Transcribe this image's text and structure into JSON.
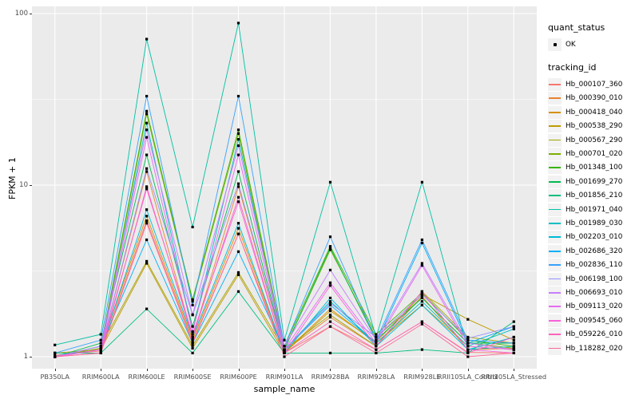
{
  "figure": {
    "panel_background": "#EBEBEB",
    "gridline_color": "#FFFFFF",
    "tick_label_color": "#4D4D4D",
    "point_color": "#000000"
  },
  "axes": {
    "x_title": "sample_name",
    "y_title": "FPKM + 1"
  },
  "legend": {
    "quant_title": "quant_status",
    "quant_item_label": "OK",
    "tracking_title": "tracking_id",
    "key_background": "#F2F2F2"
  },
  "chart_data": {
    "type": "line",
    "title": "",
    "xlabel": "sample_name",
    "ylabel": "FPKM + 1",
    "y_scale": "log10",
    "ylim": [
      1,
      100
    ],
    "y_ticks": [
      1,
      10,
      100
    ],
    "y_minor_ticks": [
      3.1623,
      31.6228
    ],
    "grid": true,
    "legend_position": "right",
    "point_shape": "small-black-square",
    "categories": [
      "PB350LA",
      "RRIM600LA",
      "RRIM600LE",
      "RRIM600SE",
      "RRIM600PE",
      "RRIM901LA",
      "RRIM928BA",
      "RRIM928LA",
      "RRIM928LE",
      "RRII105LA_Control",
      "RRII105LA_Stressed"
    ],
    "series": [
      {
        "name": "Hb_000107_360",
        "color": "#F8766D",
        "values": [
          1.02,
          1.08,
          6.2,
          1.22,
          5.2,
          1.05,
          1.5,
          1.1,
          1.6,
          1.06,
          1.05
        ]
      },
      {
        "name": "Hb_000390_010",
        "color": "#EA8331",
        "values": [
          1.0,
          1.1,
          12.0,
          1.3,
          9.8,
          1.08,
          1.7,
          1.15,
          2.25,
          1.1,
          1.12
        ]
      },
      {
        "name": "Hb_000418_040",
        "color": "#D89000",
        "values": [
          1.0,
          1.12,
          6.6,
          1.26,
          5.6,
          1.06,
          1.9,
          1.2,
          2.0,
          1.15,
          1.1
        ]
      },
      {
        "name": "Hb_000538_290",
        "color": "#C09B00",
        "values": [
          1.05,
          1.1,
          3.5,
          1.12,
          3.0,
          1.05,
          1.85,
          1.22,
          2.3,
          1.65,
          1.25
        ]
      },
      {
        "name": "Hb_000567_290",
        "color": "#A3A500",
        "values": [
          1.0,
          1.15,
          3.6,
          1.16,
          3.1,
          1.1,
          1.75,
          1.15,
          2.4,
          1.3,
          1.2
        ]
      },
      {
        "name": "Hb_000701_020",
        "color": "#7CAE00",
        "values": [
          1.0,
          1.12,
          26.0,
          2.1,
          20.0,
          1.1,
          4.2,
          1.3,
          2.2,
          1.2,
          1.12
        ]
      },
      {
        "name": "Hb_001348_100",
        "color": "#39B600",
        "values": [
          1.0,
          1.15,
          27.0,
          2.15,
          21.0,
          1.15,
          4.4,
          1.35,
          2.35,
          1.25,
          1.15
        ]
      },
      {
        "name": "Hb_001699_270",
        "color": "#00BB4E",
        "values": [
          1.0,
          1.2,
          15.0,
          1.5,
          12.0,
          1.1,
          4.3,
          1.25,
          2.2,
          1.2,
          1.2
        ]
      },
      {
        "name": "Hb_001856_210",
        "color": "#00BF7D",
        "values": [
          1.05,
          1.05,
          1.9,
          1.05,
          2.4,
          1.05,
          1.05,
          1.05,
          1.1,
          1.05,
          1.6
        ]
      },
      {
        "name": "Hb_001971_040",
        "color": "#00C1A3",
        "values": [
          1.17,
          1.35,
          71.0,
          5.7,
          88.0,
          1.25,
          10.4,
          1.3,
          10.4,
          1.1,
          1.15
        ]
      },
      {
        "name": "Hb_001989_030",
        "color": "#00BFC4",
        "values": [
          1.0,
          1.1,
          23.0,
          1.4,
          18.5,
          1.1,
          2.1,
          1.2,
          2.1,
          1.15,
          1.45
        ]
      },
      {
        "name": "Hb_002203_010",
        "color": "#00BBDA",
        "values": [
          1.0,
          1.1,
          7.2,
          1.3,
          6.0,
          1.05,
          2.2,
          1.15,
          2.0,
          1.1,
          1.3
        ]
      },
      {
        "name": "Hb_002686_320",
        "color": "#00B0F6",
        "values": [
          1.0,
          1.15,
          4.8,
          1.2,
          4.1,
          1.1,
          2.0,
          1.2,
          4.6,
          1.2,
          1.5
        ]
      },
      {
        "name": "Hb_002836_110",
        "color": "#35A2FF",
        "values": [
          1.05,
          1.25,
          33.0,
          2.0,
          33.0,
          1.15,
          5.0,
          1.25,
          4.8,
          1.25,
          1.2
        ]
      },
      {
        "name": "Hb_006198_100",
        "color": "#9590FF",
        "values": [
          1.0,
          1.1,
          12.5,
          1.75,
          10.2,
          1.1,
          2.05,
          1.3,
          2.3,
          1.28,
          1.5
        ]
      },
      {
        "name": "Hb_006693_010",
        "color": "#C77CFF",
        "values": [
          1.0,
          1.15,
          21.0,
          1.76,
          17.0,
          1.15,
          3.2,
          1.25,
          3.5,
          1.2,
          1.1
        ]
      },
      {
        "name": "Hb_009113_020",
        "color": "#E76BF3",
        "values": [
          1.0,
          1.1,
          19.0,
          1.4,
          15.0,
          1.1,
          2.7,
          1.2,
          3.4,
          1.15,
          1.1
        ]
      },
      {
        "name": "Hb_009545_060",
        "color": "#FA62DB",
        "values": [
          1.0,
          1.1,
          9.5,
          1.35,
          8.0,
          1.05,
          2.6,
          1.15,
          2.4,
          1.1,
          1.05
        ]
      },
      {
        "name": "Hb_059226_010",
        "color": "#FF62BC",
        "values": [
          1.0,
          1.05,
          9.8,
          1.3,
          8.5,
          1.05,
          1.6,
          1.1,
          1.6,
          1.05,
          1.3
        ]
      },
      {
        "name": "Hb_118282_020",
        "color": "#FF6A98",
        "values": [
          1.0,
          1.05,
          6.0,
          1.2,
          5.2,
          1.0,
          1.5,
          1.05,
          1.55,
          1.0,
          1.05
        ]
      }
    ]
  }
}
